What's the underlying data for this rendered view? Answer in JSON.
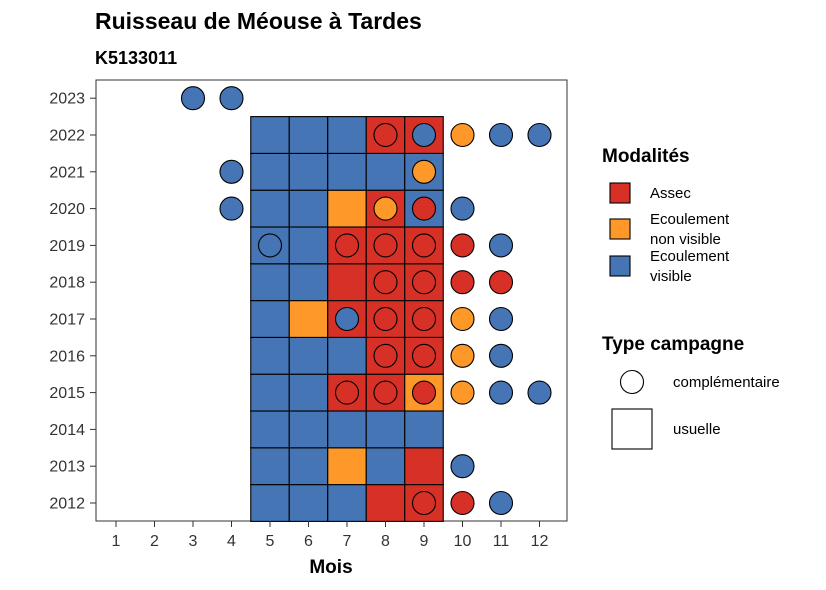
{
  "chart_data": {
    "type": "heatmap",
    "title": "Ruisseau de Méouse à Tardes",
    "subtitle": "K5133011",
    "xlabel": "Mois",
    "ylabel": "",
    "x_ticks": [
      "1",
      "2",
      "3",
      "4",
      "5",
      "6",
      "7",
      "8",
      "9",
      "10",
      "11",
      "12"
    ],
    "y_ticks": [
      "2012",
      "2013",
      "2014",
      "2015",
      "2016",
      "2017",
      "2018",
      "2019",
      "2020",
      "2021",
      "2022",
      "2023"
    ],
    "grid": false,
    "legend_placement": "right",
    "colors": {
      "assec": "#d73027",
      "non_visible": "#fe9929",
      "visible": "#4575b4"
    },
    "legend_modalites": {
      "title": "Modalités",
      "items": [
        {
          "key": "assec",
          "lines": [
            "Assec"
          ]
        },
        {
          "key": "non_visible",
          "lines": [
            "Ecoulement",
            "non visible"
          ]
        },
        {
          "key": "visible",
          "lines": [
            "Ecoulement",
            "visible"
          ]
        }
      ]
    },
    "legend_campagne": {
      "title": "Type campagne",
      "items": [
        {
          "shape": "circle",
          "label": "complémentaire"
        },
        {
          "shape": "square",
          "label": "usuelle"
        }
      ]
    },
    "usuelle": [
      [
        2012,
        5,
        "visible"
      ],
      [
        2012,
        6,
        "visible"
      ],
      [
        2012,
        7,
        "visible"
      ],
      [
        2012,
        8,
        "assec"
      ],
      [
        2012,
        9,
        "assec"
      ],
      [
        2013,
        5,
        "visible"
      ],
      [
        2013,
        6,
        "visible"
      ],
      [
        2013,
        7,
        "non_visible"
      ],
      [
        2013,
        8,
        "visible"
      ],
      [
        2013,
        9,
        "assec"
      ],
      [
        2014,
        5,
        "visible"
      ],
      [
        2014,
        6,
        "visible"
      ],
      [
        2014,
        7,
        "visible"
      ],
      [
        2014,
        8,
        "visible"
      ],
      [
        2014,
        9,
        "visible"
      ],
      [
        2015,
        5,
        "visible"
      ],
      [
        2015,
        6,
        "visible"
      ],
      [
        2015,
        7,
        "assec"
      ],
      [
        2015,
        8,
        "assec"
      ],
      [
        2015,
        9,
        "non_visible"
      ],
      [
        2016,
        5,
        "visible"
      ],
      [
        2016,
        6,
        "visible"
      ],
      [
        2016,
        7,
        "visible"
      ],
      [
        2016,
        8,
        "assec"
      ],
      [
        2016,
        9,
        "assec"
      ],
      [
        2017,
        5,
        "visible"
      ],
      [
        2017,
        6,
        "non_visible"
      ],
      [
        2017,
        7,
        "assec"
      ],
      [
        2017,
        8,
        "assec"
      ],
      [
        2017,
        9,
        "assec"
      ],
      [
        2018,
        5,
        "visible"
      ],
      [
        2018,
        6,
        "visible"
      ],
      [
        2018,
        7,
        "assec"
      ],
      [
        2018,
        8,
        "assec"
      ],
      [
        2018,
        9,
        "assec"
      ],
      [
        2019,
        5,
        "visible"
      ],
      [
        2019,
        6,
        "visible"
      ],
      [
        2019,
        7,
        "assec"
      ],
      [
        2019,
        8,
        "assec"
      ],
      [
        2019,
        9,
        "assec"
      ],
      [
        2020,
        5,
        "visible"
      ],
      [
        2020,
        6,
        "visible"
      ],
      [
        2020,
        7,
        "non_visible"
      ],
      [
        2020,
        8,
        "assec"
      ],
      [
        2020,
        9,
        "visible"
      ],
      [
        2021,
        5,
        "visible"
      ],
      [
        2021,
        6,
        "visible"
      ],
      [
        2021,
        7,
        "visible"
      ],
      [
        2021,
        8,
        "visible"
      ],
      [
        2021,
        9,
        "visible"
      ],
      [
        2022,
        5,
        "visible"
      ],
      [
        2022,
        6,
        "visible"
      ],
      [
        2022,
        7,
        "visible"
      ],
      [
        2022,
        8,
        "assec"
      ],
      [
        2022,
        9,
        "assec"
      ]
    ],
    "complementaire": [
      [
        2012,
        9,
        "assec"
      ],
      [
        2012,
        10,
        "assec"
      ],
      [
        2012,
        11,
        "visible"
      ],
      [
        2013,
        10,
        "visible"
      ],
      [
        2015,
        7,
        "assec"
      ],
      [
        2015,
        8,
        "assec"
      ],
      [
        2015,
        9,
        "assec"
      ],
      [
        2015,
        10,
        "non_visible"
      ],
      [
        2015,
        11,
        "visible"
      ],
      [
        2015,
        12,
        "visible"
      ],
      [
        2016,
        8,
        "assec"
      ],
      [
        2016,
        9,
        "assec"
      ],
      [
        2016,
        10,
        "non_visible"
      ],
      [
        2016,
        11,
        "visible"
      ],
      [
        2017,
        7,
        "visible"
      ],
      [
        2017,
        8,
        "assec"
      ],
      [
        2017,
        9,
        "assec"
      ],
      [
        2017,
        10,
        "non_visible"
      ],
      [
        2017,
        11,
        "visible"
      ],
      [
        2018,
        8,
        "assec"
      ],
      [
        2018,
        9,
        "assec"
      ],
      [
        2018,
        10,
        "assec"
      ],
      [
        2018,
        11,
        "assec"
      ],
      [
        2019,
        5,
        "visible"
      ],
      [
        2019,
        7,
        "assec"
      ],
      [
        2019,
        8,
        "assec"
      ],
      [
        2019,
        9,
        "assec"
      ],
      [
        2019,
        10,
        "assec"
      ],
      [
        2019,
        11,
        "visible"
      ],
      [
        2020,
        4,
        "visible"
      ],
      [
        2020,
        8,
        "non_visible"
      ],
      [
        2020,
        9,
        "assec"
      ],
      [
        2020,
        10,
        "visible"
      ],
      [
        2021,
        4,
        "visible"
      ],
      [
        2021,
        9,
        "non_visible"
      ],
      [
        2022,
        8,
        "assec"
      ],
      [
        2022,
        9,
        "visible"
      ],
      [
        2022,
        10,
        "non_visible"
      ],
      [
        2022,
        11,
        "visible"
      ],
      [
        2022,
        12,
        "visible"
      ],
      [
        2023,
        3,
        "visible"
      ],
      [
        2023,
        4,
        "visible"
      ]
    ]
  }
}
